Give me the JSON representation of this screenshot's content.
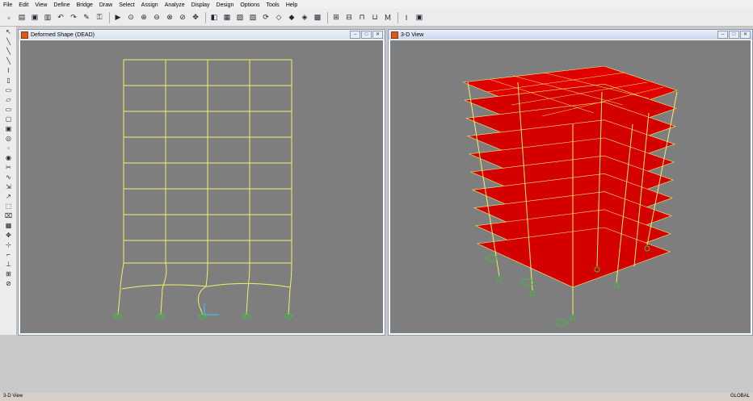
{
  "menu": [
    "File",
    "Edit",
    "View",
    "Define",
    "Bridge",
    "Draw",
    "Select",
    "Assign",
    "Analyze",
    "Display",
    "Design",
    "Options",
    "Tools",
    "Help"
  ],
  "toolbar": {
    "icons": [
      "new-icon",
      "open-icon",
      "save-icon",
      "save-as-icon",
      "undo-icon",
      "redo-icon",
      "refresh-icon",
      "lock-icon",
      "run-icon",
      "zoom-window-icon",
      "zoom-in-icon",
      "zoom-out-icon",
      "zoom-fit-icon",
      "zoom-prev-icon",
      "pan-icon",
      "view-3d-icon",
      "view-xy-icon",
      "view-xz-icon",
      "view-yz-icon",
      "view-rotate-icon",
      "view-perspective-icon",
      "move-up-icon",
      "move-down-icon",
      "shadow-icon",
      "object-shrink-icon",
      "extrude-icon",
      "frame-icon",
      "material-icon",
      "section-icon",
      "display-icon",
      "deformed-icon"
    ],
    "labels": [
      "3d",
      "xy",
      "xz",
      "yz",
      "nv"
    ]
  },
  "left_toolbar": [
    "pointer-icon",
    "frame-draw-icon",
    "line-icon",
    "polyline-icon",
    "quick-frame-icon",
    "brace-icon",
    "area-icon",
    "poly-area-icon",
    "rect-area-icon",
    "quick-area-icon",
    "solid-icon",
    "link-icon",
    "joint-icon",
    "special-joint-icon",
    "section-cut-icon",
    "tendon-icon",
    "reshape-icon",
    "all-icon",
    "ps-icon",
    "clear-icon",
    "grid-icon",
    "move-icon",
    "snap-icon",
    "snap-end-icon",
    "snap-perp-icon",
    "snap-grid-icon",
    "snap-off-icon"
  ],
  "windows": {
    "left": {
      "title": "Deformed Shape (DEAD)"
    },
    "right": {
      "title": "3-D View"
    }
  },
  "status": {
    "left": "3-D View",
    "right": "GLOBAL"
  },
  "colors": {
    "canvas": "#7e7e7e",
    "frame_line": "#f2f06a",
    "slab": "#e00000",
    "support": "#3cbf3c",
    "accent": "#d85a19"
  }
}
